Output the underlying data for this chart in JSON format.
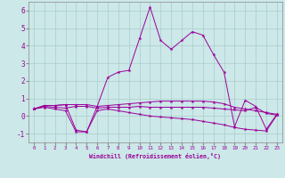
{
  "xlabel": "Windchill (Refroidissement éolien,°C)",
  "bg_color": "#cce8e8",
  "grid_color": "#aacccc",
  "line_color": "#990099",
  "xlim": [
    -0.5,
    23.5
  ],
  "ylim": [
    -1.5,
    6.5
  ],
  "yticks": [
    -1,
    0,
    1,
    2,
    3,
    4,
    5,
    6
  ],
  "xticks": [
    0,
    1,
    2,
    3,
    4,
    5,
    6,
    7,
    8,
    9,
    10,
    11,
    12,
    13,
    14,
    15,
    16,
    17,
    18,
    19,
    20,
    21,
    22,
    23
  ],
  "series": [
    {
      "x": [
        0,
        1,
        2,
        3,
        4,
        5,
        6,
        7,
        8,
        9,
        10,
        11,
        12,
        13,
        14,
        15,
        16,
        17,
        18,
        19,
        20,
        21,
        22,
        23
      ],
      "y": [
        0.4,
        0.6,
        0.6,
        0.65,
        0.65,
        0.65,
        0.55,
        0.6,
        0.65,
        0.7,
        0.75,
        0.8,
        0.85,
        0.85,
        0.85,
        0.85,
        0.85,
        0.8,
        0.7,
        0.5,
        0.4,
        0.3,
        0.2,
        0.1
      ]
    },
    {
      "x": [
        0,
        1,
        2,
        3,
        4,
        5,
        6,
        7,
        8,
        9,
        10,
        11,
        12,
        13,
        14,
        15,
        16,
        17,
        18,
        19,
        20,
        21,
        22,
        23
      ],
      "y": [
        0.4,
        0.6,
        0.6,
        0.65,
        -0.8,
        -0.9,
        0.55,
        2.2,
        2.5,
        2.6,
        4.4,
        6.2,
        4.3,
        3.8,
        4.3,
        4.8,
        4.6,
        3.5,
        2.5,
        -0.6,
        0.9,
        0.55,
        -0.75,
        0.1
      ]
    },
    {
      "x": [
        0,
        1,
        2,
        3,
        4,
        5,
        6,
        7,
        8,
        9,
        10,
        11,
        12,
        13,
        14,
        15,
        16,
        17,
        18,
        19,
        20,
        21,
        22,
        23
      ],
      "y": [
        0.4,
        0.5,
        0.4,
        0.3,
        -0.9,
        -0.9,
        0.3,
        0.4,
        0.3,
        0.2,
        0.1,
        0.0,
        -0.05,
        -0.1,
        -0.15,
        -0.2,
        -0.3,
        -0.4,
        -0.5,
        -0.65,
        -0.75,
        -0.8,
        -0.85,
        0.05
      ]
    },
    {
      "x": [
        0,
        1,
        2,
        3,
        4,
        5,
        6,
        7,
        8,
        9,
        10,
        11,
        12,
        13,
        14,
        15,
        16,
        17,
        18,
        19,
        20,
        21,
        22,
        23
      ],
      "y": [
        0.4,
        0.55,
        0.5,
        0.45,
        0.55,
        0.55,
        0.45,
        0.5,
        0.5,
        0.5,
        0.55,
        0.5,
        0.5,
        0.5,
        0.5,
        0.5,
        0.5,
        0.45,
        0.4,
        0.35,
        0.3,
        0.5,
        0.15,
        0.05
      ]
    }
  ]
}
